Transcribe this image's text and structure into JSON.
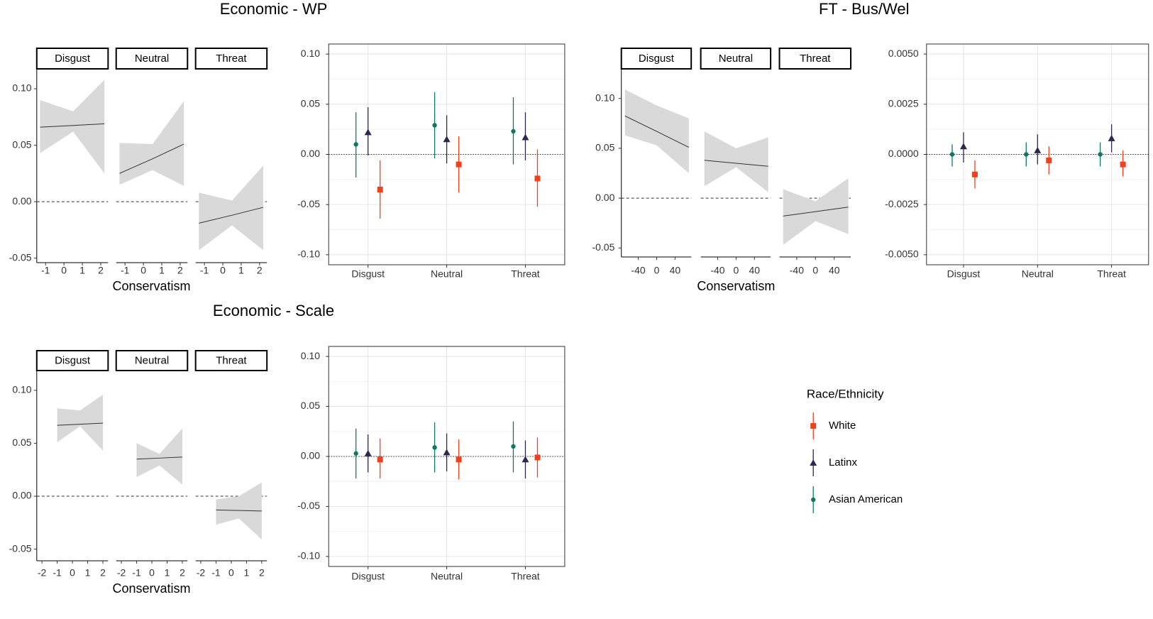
{
  "chart_data": [
    {
      "type": "facet-line",
      "title": "Economic - WP",
      "xlabel": "Conservatism",
      "ylim": [
        -0.054,
        0.117
      ],
      "yticks": [
        -0.05,
        {
          "value": 0,
          "label": "0.00"
        },
        0.05,
        {
          "value": 0.1,
          "label": "0.10"
        }
      ],
      "xlim": [
        -1.48,
        2.4
      ],
      "xticks": [
        -1,
        0,
        1,
        2
      ],
      "hline": 0,
      "color": "#333333",
      "ribbon_color": "#d9d9d9",
      "facets": [
        {
          "name": "Disgust",
          "x": [
            -1.3,
            0.5,
            2.2
          ],
          "values": [
            0.066,
            0.0675,
            0.069
          ],
          "lower": [
            0.043,
            0.062,
            0.025
          ],
          "upper": [
            0.09,
            0.08,
            0.108
          ]
        },
        {
          "name": "Neutral",
          "x": [
            -1.3,
            0.5,
            2.2
          ],
          "values": [
            0.025,
            0.038,
            0.051
          ],
          "lower": [
            0.015,
            0.028,
            0.014
          ],
          "upper": [
            0.052,
            0.051,
            0.089
          ]
        },
        {
          "name": "Threat",
          "x": [
            -1.3,
            0.5,
            2.2
          ],
          "values": [
            -0.019,
            -0.012,
            -0.005
          ],
          "lower": [
            -0.043,
            -0.021,
            -0.043
          ],
          "upper": [
            0.008,
            0.001,
            0.032
          ]
        }
      ]
    },
    {
      "type": "pointrange",
      "categories": [
        "Disgust",
        "Neutral",
        "Threat"
      ],
      "ylim": [
        -0.11,
        0.11
      ],
      "yticks": [
        {
          "value": -0.1,
          "label": "-0.10"
        },
        -0.05,
        {
          "value": 0,
          "label": "0.00"
        },
        0.05,
        {
          "value": 0.1,
          "label": "0.10"
        }
      ],
      "grid": true,
      "hline": 0,
      "legend_title": "Race/Ethnicity",
      "series": [
        {
          "name": "White",
          "color": "#f0401e",
          "shape": "square",
          "values": [
            -0.035,
            -0.01,
            -0.024
          ],
          "lower": [
            -0.064,
            -0.038,
            -0.052
          ],
          "upper": [
            -0.006,
            0.018,
            0.005
          ]
        },
        {
          "name": "Latinx",
          "color": "#2d2850",
          "shape": "triangle",
          "values": [
            0.022,
            0.015,
            0.017
          ],
          "lower": [
            -0.001,
            -0.009,
            -0.006
          ],
          "upper": [
            0.047,
            0.039,
            0.042
          ]
        },
        {
          "name": "Asian American",
          "color": "#0d7a5e",
          "shape": "circle",
          "values": [
            0.01,
            0.029,
            0.023
          ],
          "lower": [
            -0.023,
            -0.004,
            -0.01
          ],
          "upper": [
            0.042,
            0.062,
            0.057
          ]
        }
      ]
    },
    {
      "type": "facet-line",
      "title": "FT - Bus/Wel",
      "xlabel": "Conservatism",
      "ylim": [
        -0.059,
        0.129
      ],
      "yticks": [
        -0.05,
        {
          "value": 0,
          "label": "0.00"
        },
        0.05,
        {
          "value": 0.1,
          "label": "0.10"
        }
      ],
      "xlim": [
        -76.8,
        75.2
      ],
      "xticks": [
        -40,
        0,
        40
      ],
      "hline": 0,
      "color": "#333333",
      "ribbon_color": "#d9d9d9",
      "facets": [
        {
          "name": "Disgust",
          "x": [
            -69,
            0,
            70
          ],
          "values": [
            0.0825,
            0.067,
            0.051
          ],
          "lower": [
            0.063,
            0.053,
            0.025
          ],
          "upper": [
            0.109,
            0.093,
            0.08
          ]
        },
        {
          "name": "Neutral",
          "x": [
            -69,
            0,
            70
          ],
          "values": [
            0.038,
            0.035,
            0.032
          ],
          "lower": [
            0.012,
            0.031,
            0.006
          ],
          "upper": [
            0.067,
            0.05,
            0.061
          ]
        },
        {
          "name": "Threat",
          "x": [
            -69,
            0,
            70
          ],
          "values": [
            -0.018,
            -0.0135,
            -0.009
          ],
          "lower": [
            -0.047,
            -0.023,
            -0.036
          ],
          "upper": [
            0.009,
            -0.003,
            0.02
          ]
        }
      ]
    },
    {
      "type": "pointrange",
      "categories": [
        "Disgust",
        "Neutral",
        "Threat"
      ],
      "ylim": [
        -0.0055,
        0.0055
      ],
      "yticks": [
        {
          "value": -0.005,
          "label": "-0.0050"
        },
        -0.0025,
        {
          "value": 0,
          "label": "0.0000"
        },
        0.0025,
        {
          "value": 0.005,
          "label": "0.0050"
        }
      ],
      "grid": true,
      "hline": 0,
      "series": [
        {
          "name": "White",
          "color": "#f0401e",
          "shape": "square",
          "values": [
            -0.001,
            -0.0003,
            -0.0005
          ],
          "lower": [
            -0.0017,
            -0.001,
            -0.0011
          ],
          "upper": [
            -0.0003,
            0.0004,
            0.0002
          ]
        },
        {
          "name": "Latinx",
          "color": "#2d2850",
          "shape": "triangle",
          "values": [
            0.0004,
            0.0002,
            0.0008
          ],
          "lower": [
            -0.0004,
            -0.0005,
            0.0001
          ],
          "upper": [
            0.0011,
            0.001,
            0.0015
          ]
        },
        {
          "name": "Asian American",
          "color": "#0d7a5e",
          "shape": "circle",
          "values": [
            0,
            0,
            0
          ],
          "lower": [
            -0.0006,
            -0.0006,
            -0.0006
          ],
          "upper": [
            0.0005,
            0.0006,
            0.0006
          ]
        }
      ]
    },
    {
      "type": "facet-line",
      "title": "Economic - Scale",
      "xlabel": "Conservatism",
      "ylim": [
        -0.061,
        0.118
      ],
      "yticks": [
        -0.05,
        {
          "value": 0,
          "label": "0.00"
        },
        0.05,
        {
          "value": 0.1,
          "label": "0.10"
        }
      ],
      "xlim": [
        -2.34,
        2.34
      ],
      "xticks": [
        -2,
        -1,
        0,
        1,
        2
      ],
      "hline": 0,
      "color": "#333333",
      "ribbon_color": "#d9d9d9",
      "facets": [
        {
          "name": "Disgust",
          "x": [
            -1,
            0.5,
            2
          ],
          "values": [
            0.067,
            0.068,
            0.069
          ],
          "lower": [
            0.051,
            0.066,
            0.043
          ],
          "upper": [
            0.083,
            0.081,
            0.096
          ]
        },
        {
          "name": "Neutral",
          "x": [
            -1,
            0.5,
            2
          ],
          "values": [
            0.035,
            0.036,
            0.037
          ],
          "lower": [
            0.018,
            0.029,
            0.011
          ],
          "upper": [
            0.05,
            0.04,
            0.064
          ]
        },
        {
          "name": "Threat",
          "x": [
            -1,
            0.5,
            2
          ],
          "values": [
            -0.013,
            -0.0135,
            -0.014
          ],
          "lower": [
            -0.027,
            -0.021,
            -0.041
          ],
          "upper": [
            -0.003,
            0,
            0.013
          ]
        }
      ]
    },
    {
      "type": "pointrange",
      "categories": [
        "Disgust",
        "Neutral",
        "Threat"
      ],
      "ylim": [
        -0.11,
        0.11
      ],
      "yticks": [
        {
          "value": -0.1,
          "label": "-0.10"
        },
        -0.05,
        {
          "value": 0,
          "label": "0.00"
        },
        0.05,
        {
          "value": 0.1,
          "label": "0.10"
        }
      ],
      "grid": true,
      "hline": 0,
      "series": [
        {
          "name": "White",
          "color": "#f0401e",
          "shape": "square",
          "values": [
            -0.003,
            -0.003,
            -0.001
          ],
          "lower": [
            -0.022,
            -0.023,
            -0.021
          ],
          "upper": [
            0.018,
            0.017,
            0.019
          ]
        },
        {
          "name": "Latinx",
          "color": "#2d2850",
          "shape": "triangle",
          "values": [
            0.003,
            0.004,
            -0.003
          ],
          "lower": [
            -0.016,
            -0.015,
            -0.022
          ],
          "upper": [
            0.022,
            0.023,
            0.016
          ]
        },
        {
          "name": "Asian American",
          "color": "#0d7a5e",
          "shape": "circle",
          "values": [
            0.003,
            0.009,
            0.01
          ],
          "lower": [
            -0.022,
            -0.016,
            -0.016
          ],
          "upper": [
            0.028,
            0.034,
            0.035
          ]
        }
      ]
    }
  ]
}
